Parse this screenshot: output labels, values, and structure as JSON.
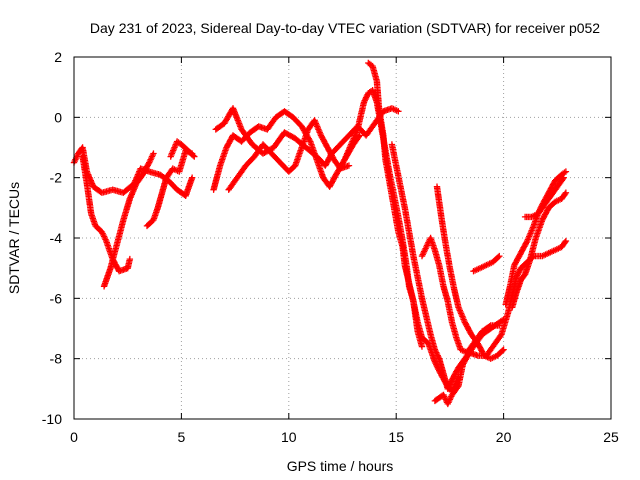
{
  "chart_data": {
    "type": "scatter",
    "title": "Day 231 of 2023, Sidereal Day-to-day VTEC variation (SDTVAR) for receiver p052",
    "xlabel": "GPS time / hours",
    "ylabel": "SDTVAR / TECUs",
    "xlim": [
      0,
      25
    ],
    "ylim": [
      -10,
      2
    ],
    "xticks": [
      0,
      5,
      10,
      15,
      20,
      25
    ],
    "yticks": [
      -10,
      -8,
      -6,
      -4,
      -2,
      0,
      2
    ],
    "grid": true,
    "marker": "plus",
    "color": "#ff0000",
    "series": [
      {
        "values": [
          [
            0.0,
            -1.5
          ],
          [
            0.2,
            -1.2
          ],
          [
            0.4,
            -1.0
          ],
          [
            0.6,
            -1.8
          ],
          [
            0.9,
            -2.3
          ],
          [
            1.3,
            -2.5
          ],
          [
            1.8,
            -2.4
          ],
          [
            2.3,
            -2.5
          ],
          [
            2.8,
            -2.2
          ],
          [
            3.1,
            -1.7
          ],
          [
            3.5,
            -1.8
          ],
          [
            4.0,
            -1.9
          ],
          [
            4.4,
            -2.1
          ],
          [
            4.8,
            -2.4
          ],
          [
            5.2,
            -2.6
          ],
          [
            5.5,
            -2.0
          ]
        ]
      },
      {
        "values": [
          [
            0.4,
            -1.3
          ],
          [
            0.6,
            -2.2
          ],
          [
            0.8,
            -3.2
          ],
          [
            1.0,
            -3.6
          ],
          [
            1.3,
            -3.8
          ],
          [
            1.5,
            -4.1
          ],
          [
            1.8,
            -4.7
          ],
          [
            2.1,
            -5.1
          ],
          [
            2.5,
            -5.0
          ],
          [
            2.6,
            -4.7
          ]
        ]
      },
      {
        "values": [
          [
            1.4,
            -5.6
          ],
          [
            1.7,
            -5.0
          ],
          [
            2.0,
            -4.2
          ],
          [
            2.3,
            -3.4
          ],
          [
            2.6,
            -2.7
          ],
          [
            2.9,
            -2.2
          ],
          [
            3.2,
            -1.9
          ],
          [
            3.5,
            -1.5
          ],
          [
            3.7,
            -1.2
          ]
        ]
      },
      {
        "values": [
          [
            3.4,
            -3.6
          ],
          [
            3.7,
            -3.4
          ],
          [
            3.9,
            -3.0
          ],
          [
            4.1,
            -2.5
          ],
          [
            4.3,
            -2.0
          ],
          [
            4.6,
            -1.7
          ],
          [
            4.9,
            -1.8
          ],
          [
            5.2,
            -1.1
          ],
          [
            5.5,
            -1.2
          ]
        ]
      },
      {
        "values": [
          [
            4.5,
            -1.3
          ],
          [
            4.8,
            -0.8
          ],
          [
            5.0,
            -0.9
          ],
          [
            5.3,
            -1.1
          ],
          [
            5.6,
            -1.3
          ]
        ]
      },
      {
        "values": [
          [
            6.6,
            -0.4
          ],
          [
            7.0,
            -0.2
          ],
          [
            7.4,
            0.3
          ],
          [
            7.8,
            -0.4
          ],
          [
            8.3,
            -0.9
          ],
          [
            8.8,
            -1.2
          ],
          [
            9.3,
            -1.0
          ],
          [
            9.8,
            -0.5
          ],
          [
            10.3,
            -0.7
          ],
          [
            10.8,
            -1.0
          ],
          [
            11.3,
            -1.3
          ],
          [
            11.7,
            -1.6
          ],
          [
            12.0,
            -1.2
          ],
          [
            12.4,
            -0.9
          ],
          [
            12.8,
            -0.6
          ],
          [
            13.2,
            -0.3
          ],
          [
            13.6,
            -0.6
          ],
          [
            14.0,
            -0.2
          ],
          [
            14.4,
            0.2
          ],
          [
            14.8,
            0.3
          ],
          [
            15.1,
            0.2
          ]
        ]
      },
      {
        "values": [
          [
            6.5,
            -2.4
          ],
          [
            6.8,
            -1.6
          ],
          [
            7.1,
            -1.0
          ],
          [
            7.4,
            -0.6
          ],
          [
            7.8,
            -0.8
          ],
          [
            8.2,
            -0.5
          ],
          [
            8.6,
            -0.3
          ],
          [
            9.0,
            -0.4
          ],
          [
            9.4,
            0.0
          ],
          [
            9.8,
            0.2
          ],
          [
            10.2,
            0.0
          ],
          [
            10.6,
            -0.3
          ],
          [
            11.0,
            -0.8
          ],
          [
            11.3,
            -1.4
          ],
          [
            11.6,
            -2.0
          ],
          [
            11.9,
            -2.3
          ],
          [
            12.2,
            -1.9
          ],
          [
            12.6,
            -1.4
          ],
          [
            13.0,
            -0.9
          ],
          [
            13.3,
            -0.6
          ]
        ]
      },
      {
        "values": [
          [
            7.2,
            -2.4
          ],
          [
            7.6,
            -2.0
          ],
          [
            8.0,
            -1.6
          ],
          [
            8.4,
            -1.3
          ],
          [
            8.8,
            -0.9
          ],
          [
            9.2,
            -1.2
          ],
          [
            9.6,
            -1.5
          ],
          [
            10.0,
            -1.8
          ],
          [
            10.3,
            -1.6
          ],
          [
            10.6,
            -1.0
          ],
          [
            10.9,
            -0.4
          ],
          [
            11.2,
            -0.1
          ],
          [
            11.5,
            -0.6
          ],
          [
            11.8,
            -1.0
          ],
          [
            12.1,
            -1.4
          ],
          [
            12.4,
            -1.7
          ],
          [
            12.8,
            -1.6
          ]
        ]
      },
      {
        "values": [
          [
            12.6,
            -1.4
          ],
          [
            12.9,
            -0.9
          ],
          [
            13.2,
            -0.4
          ],
          [
            13.5,
            0.5
          ],
          [
            13.7,
            0.8
          ],
          [
            13.9,
            0.9
          ],
          [
            14.1,
            0.5
          ],
          [
            14.3,
            -0.3
          ],
          [
            14.5,
            -1.1
          ],
          [
            14.7,
            -1.9
          ],
          [
            14.9,
            -2.6
          ],
          [
            15.1,
            -3.3
          ],
          [
            15.3,
            -4.1
          ],
          [
            15.5,
            -5.0
          ],
          [
            15.6,
            -5.6
          ],
          [
            15.8,
            -6.1
          ],
          [
            15.9,
            -6.6
          ],
          [
            16.0,
            -7.1
          ],
          [
            16.2,
            -7.6
          ]
        ]
      },
      {
        "values": [
          [
            13.7,
            1.8
          ],
          [
            13.9,
            1.7
          ],
          [
            14.1,
            1.2
          ],
          [
            14.2,
            0.3
          ],
          [
            14.4,
            -0.6
          ],
          [
            14.5,
            -1.4
          ],
          [
            14.7,
            -2.2
          ],
          [
            14.9,
            -3.0
          ],
          [
            15.1,
            -3.8
          ],
          [
            15.3,
            -4.3
          ],
          [
            15.4,
            -4.9
          ],
          [
            15.6,
            -5.5
          ],
          [
            15.8,
            -6.1
          ],
          [
            16.0,
            -6.8
          ],
          [
            16.2,
            -7.3
          ],
          [
            16.5,
            -7.5
          ],
          [
            16.8,
            -8.1
          ],
          [
            17.0,
            -8.4
          ],
          [
            17.3,
            -8.8
          ],
          [
            17.6,
            -9.1
          ],
          [
            17.9,
            -8.6
          ]
        ]
      },
      {
        "values": [
          [
            14.8,
            -0.9
          ],
          [
            15.0,
            -1.6
          ],
          [
            15.2,
            -2.3
          ],
          [
            15.4,
            -3.0
          ],
          [
            15.6,
            -3.8
          ],
          [
            15.8,
            -4.6
          ],
          [
            16.0,
            -5.3
          ],
          [
            16.2,
            -6.0
          ],
          [
            16.4,
            -6.6
          ],
          [
            16.6,
            -7.2
          ],
          [
            16.8,
            -7.7
          ],
          [
            17.0,
            -8.0
          ],
          [
            17.2,
            -8.5
          ],
          [
            17.4,
            -9.0
          ],
          [
            17.6,
            -8.7
          ],
          [
            17.9,
            -8.3
          ],
          [
            18.2,
            -8.0
          ],
          [
            18.6,
            -7.6
          ],
          [
            19.0,
            -7.2
          ],
          [
            19.4,
            -7.0
          ],
          [
            19.8,
            -6.8
          ],
          [
            20.0,
            -6.7
          ]
        ]
      },
      {
        "values": [
          [
            16.2,
            -4.6
          ],
          [
            16.4,
            -4.3
          ],
          [
            16.6,
            -4.0
          ],
          [
            16.8,
            -4.4
          ],
          [
            17.0,
            -4.9
          ],
          [
            17.2,
            -5.6
          ],
          [
            17.4,
            -6.1
          ],
          [
            17.6,
            -6.8
          ],
          [
            17.8,
            -7.3
          ],
          [
            18.0,
            -7.7
          ],
          [
            18.3,
            -7.8
          ],
          [
            18.6,
            -7.5
          ],
          [
            19.0,
            -7.1
          ],
          [
            19.4,
            -6.9
          ],
          [
            19.8,
            -6.9
          ]
        ]
      },
      {
        "values": [
          [
            16.9,
            -2.3
          ],
          [
            17.1,
            -3.3
          ],
          [
            17.3,
            -4.2
          ],
          [
            17.5,
            -5.0
          ],
          [
            17.7,
            -5.7
          ],
          [
            17.9,
            -6.3
          ],
          [
            18.2,
            -6.8
          ],
          [
            18.5,
            -7.2
          ],
          [
            18.8,
            -7.5
          ],
          [
            19.1,
            -7.9
          ],
          [
            19.4,
            -8.0
          ],
          [
            19.7,
            -7.9
          ],
          [
            20.0,
            -7.7
          ]
        ]
      },
      {
        "values": [
          [
            16.8,
            -9.4
          ],
          [
            17.2,
            -9.2
          ],
          [
            17.4,
            -9.5
          ],
          [
            17.6,
            -9.2
          ],
          [
            17.9,
            -8.9
          ],
          [
            18.1,
            -8.2
          ],
          [
            18.4,
            -7.8
          ],
          [
            18.8,
            -7.9
          ],
          [
            19.2,
            -7.9
          ],
          [
            19.6,
            -7.5
          ],
          [
            19.9,
            -7.2
          ],
          [
            20.2,
            -6.5
          ],
          [
            20.4,
            -5.9
          ],
          [
            20.6,
            -5.3
          ],
          [
            20.8,
            -5.0
          ],
          [
            21.1,
            -4.8
          ],
          [
            21.4,
            -4.6
          ],
          [
            21.8,
            -4.6
          ],
          [
            22.1,
            -4.5
          ],
          [
            22.4,
            -4.4
          ],
          [
            22.7,
            -4.3
          ],
          [
            22.9,
            -4.1
          ]
        ]
      },
      {
        "values": [
          [
            18.6,
            -5.1
          ],
          [
            18.9,
            -5.0
          ],
          [
            19.2,
            -4.9
          ],
          [
            19.5,
            -4.8
          ],
          [
            19.8,
            -4.6
          ]
        ]
      },
      {
        "values": [
          [
            20.1,
            -6.2
          ],
          [
            20.3,
            -5.6
          ],
          [
            20.5,
            -4.9
          ],
          [
            20.8,
            -4.5
          ],
          [
            21.1,
            -4.1
          ],
          [
            21.4,
            -3.6
          ],
          [
            21.6,
            -3.2
          ],
          [
            21.8,
            -2.9
          ],
          [
            22.1,
            -2.5
          ],
          [
            22.4,
            -2.1
          ],
          [
            22.7,
            -1.9
          ],
          [
            22.9,
            -1.8
          ]
        ]
      },
      {
        "values": [
          [
            20.4,
            -6.3
          ],
          [
            20.6,
            -5.8
          ],
          [
            20.8,
            -5.4
          ],
          [
            21.0,
            -5.2
          ],
          [
            21.2,
            -4.8
          ],
          [
            21.5,
            -4.0
          ],
          [
            21.8,
            -3.4
          ],
          [
            22.1,
            -3.0
          ],
          [
            22.4,
            -2.8
          ],
          [
            22.7,
            -2.7
          ],
          [
            22.9,
            -2.5
          ]
        ]
      },
      {
        "values": [
          [
            21.0,
            -3.3
          ],
          [
            21.3,
            -3.3
          ],
          [
            21.6,
            -3.2
          ],
          [
            21.9,
            -2.9
          ],
          [
            22.2,
            -2.6
          ],
          [
            22.5,
            -2.3
          ],
          [
            22.8,
            -2.0
          ]
        ]
      }
    ]
  }
}
